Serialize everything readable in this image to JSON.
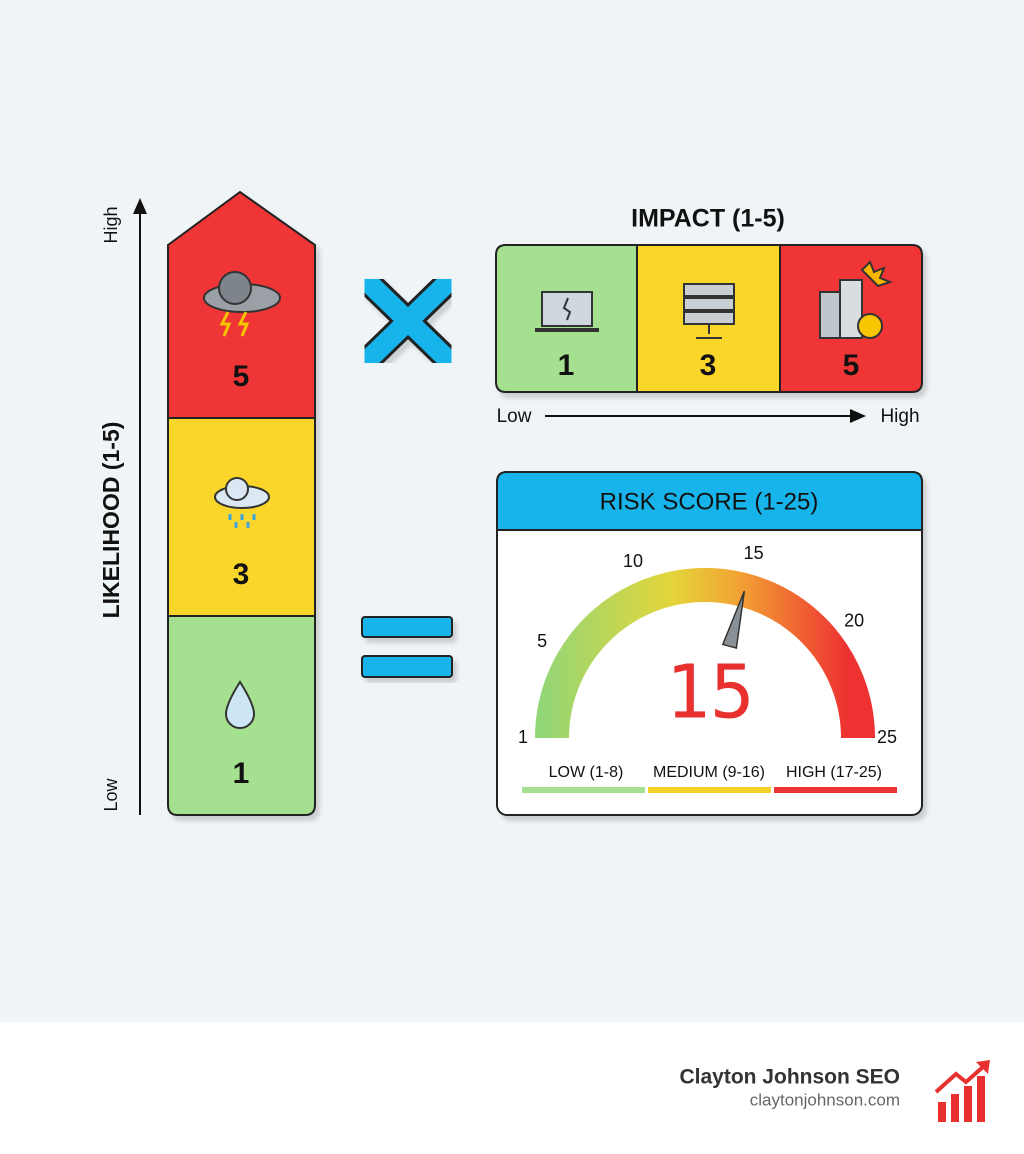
{
  "likelihood": {
    "title": "LIKELIHOOD (1-5)",
    "high": "High",
    "low": "Low",
    "levels": [
      5,
      3,
      1
    ]
  },
  "impact": {
    "title": "IMPACT (1-5)",
    "levels": [
      1,
      3,
      5
    ],
    "low": "Low",
    "high": "High"
  },
  "risk_score": {
    "title": "RISK SCORE (1-25)",
    "scale_labels": [
      1,
      5,
      10,
      15,
      20,
      25
    ],
    "value": 15,
    "bands": [
      "LOW (1-8)",
      "MEDIUM (9-16)",
      "HIGH (17-25)"
    ]
  },
  "footer": {
    "brand": "Clayton Johnson SEO",
    "url": "claytonjohnson.com"
  }
}
